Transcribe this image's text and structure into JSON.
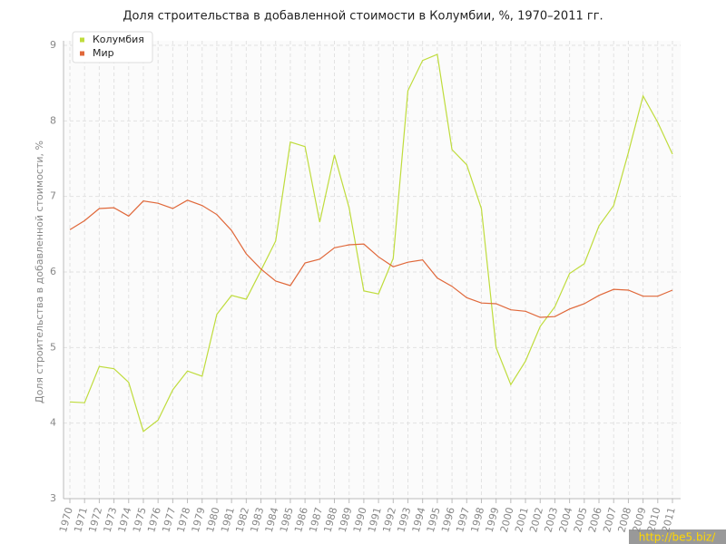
{
  "chart_data": {
    "type": "line",
    "title": "Доля строительства в добавленной стоимости в Колумбии, %, 1970–2011 гг.",
    "y_label": "Доля строительства в добавленной стоимости, %",
    "watermark": "http://be5.biz/",
    "categories": [
      "1970",
      "1971",
      "1972",
      "1973",
      "1974",
      "1975",
      "1976",
      "1977",
      "1978",
      "1979",
      "1980",
      "1981",
      "1982",
      "1983",
      "1984",
      "1985",
      "1986",
      "1987",
      "1988",
      "1989",
      "1990",
      "1991",
      "1992",
      "1993",
      "1994",
      "1995",
      "1996",
      "1997",
      "1998",
      "1999",
      "2000",
      "2001",
      "2002",
      "2003",
      "2004",
      "2005",
      "2006",
      "2007",
      "2008",
      "2009",
      "2010",
      "2011"
    ],
    "series": [
      {
        "name": "Колумбия",
        "color": "#bfdc3c",
        "values": [
          4.28,
          4.27,
          4.75,
          4.72,
          4.54,
          3.89,
          4.04,
          4.44,
          4.69,
          4.62,
          5.44,
          5.69,
          5.64,
          6.02,
          6.41,
          7.72,
          7.66,
          6.66,
          7.55,
          6.85,
          5.75,
          5.71,
          6.18,
          8.4,
          8.8,
          8.88,
          7.62,
          7.42,
          6.84,
          5.0,
          4.51,
          4.82,
          5.28,
          5.54,
          5.98,
          6.11,
          6.61,
          6.88,
          7.58,
          8.33,
          7.98,
          7.56
        ]
      },
      {
        "name": "Мир",
        "color": "#e0683a",
        "values": [
          6.56,
          6.68,
          6.84,
          6.85,
          6.74,
          6.94,
          6.91,
          6.84,
          6.95,
          6.88,
          6.76,
          6.55,
          6.24,
          6.04,
          5.88,
          5.82,
          6.12,
          6.17,
          6.32,
          6.36,
          6.37,
          6.2,
          6.07,
          6.13,
          6.16,
          5.92,
          5.81,
          5.66,
          5.59,
          5.58,
          5.5,
          5.48,
          5.4,
          5.41,
          5.51,
          5.58,
          5.69,
          5.77,
          5.76,
          5.68,
          5.68,
          5.76
        ]
      }
    ],
    "ylim": [
      3,
      9
    ],
    "yticks": [
      3,
      4,
      5,
      6,
      7,
      8,
      9
    ],
    "grid": true,
    "legend": "top-left"
  }
}
